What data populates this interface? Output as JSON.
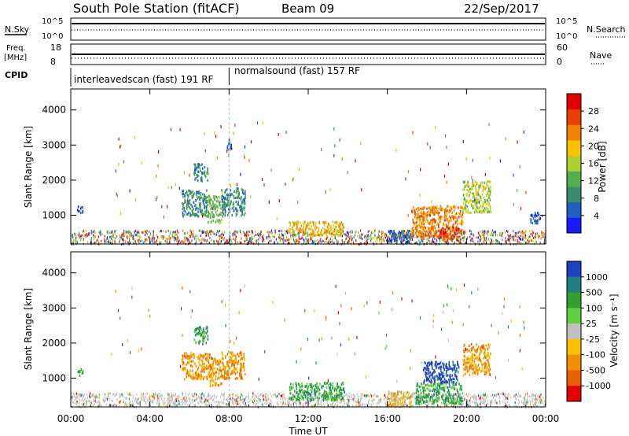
{
  "header": {
    "station": "South Pole Station (fitACF)",
    "beam": "Beam 09",
    "date": "22/Sep/2017"
  },
  "strip_labels": {
    "nsky": "N.Sky",
    "nsky_ticks": [
      "10^5",
      "10^0"
    ],
    "nsearch": "N.Search",
    "nsearch_ticks": [
      "10^5",
      "10^0"
    ],
    "freq_line1": "Freq.",
    "freq_line2": "[MHz]",
    "freq_ticks": [
      "18",
      "8"
    ],
    "nave": "Nave",
    "nave_ticks": [
      "60",
      "0"
    ],
    "cpid": "CPID"
  },
  "cpid_segments": [
    {
      "label": "interleavedscan (fast) 191 RF",
      "start_h": 0,
      "end_h": 8
    },
    {
      "label": "normalsound (fast) 157 RF",
      "start_h": 8,
      "end_h": 24
    }
  ],
  "colors": {
    "power": [
      "#1a1aff",
      "#2060c0",
      "#3a8c70",
      "#50b050",
      "#b0d030",
      "#f8c000",
      "#f08000",
      "#e84000",
      "#e00000"
    ],
    "velocity": [
      "#2040c0",
      "#208080",
      "#30a030",
      "#60d040",
      "#c0c0c0",
      "#f8c000",
      "#f09000",
      "#e86000",
      "#e00000"
    ]
  },
  "chart_data": [
    {
      "type": "heatmap",
      "name": "power",
      "xlabel": "",
      "ylabel": "Slant Range [km]",
      "x_ticks": [
        "00:00",
        "04:00",
        "08:00",
        "12:00",
        "16:00",
        "20:00",
        "00:00"
      ],
      "xlim_hours": [
        0,
        24
      ],
      "y_ticks": [
        1000,
        2000,
        3000,
        4000
      ],
      "ylim_km": [
        180,
        4600
      ],
      "colorbar_label": "Power [dB]",
      "colorbar_ticks": [
        4,
        8,
        12,
        16,
        20,
        24,
        28
      ],
      "colorbar_range": [
        0,
        32
      ],
      "scatter_regions": [
        {
          "t0": 5.6,
          "t1": 6.9,
          "r0": 1000,
          "r1": 1750,
          "level": 2
        },
        {
          "t0": 6.9,
          "t1": 7.6,
          "r0": 800,
          "r1": 1600,
          "level": 3
        },
        {
          "t0": 7.6,
          "t1": 8.8,
          "r0": 1000,
          "r1": 1800,
          "level": 2
        },
        {
          "t0": 6.2,
          "t1": 6.9,
          "r0": 2000,
          "r1": 2500,
          "level": 2
        },
        {
          "t0": 7.8,
          "t1": 8.1,
          "r0": 2900,
          "r1": 3200,
          "level": 1
        },
        {
          "t0": 11.0,
          "t1": 13.8,
          "r0": 450,
          "r1": 850,
          "level": 5
        },
        {
          "t0": 16.0,
          "t1": 17.2,
          "r0": 250,
          "r1": 600,
          "level": 1
        },
        {
          "t0": 17.2,
          "t1": 19.8,
          "r0": 400,
          "r1": 1300,
          "level": 6
        },
        {
          "t0": 18.6,
          "t1": 19.6,
          "r0": 300,
          "r1": 700,
          "level": 7
        },
        {
          "t0": 19.8,
          "t1": 21.2,
          "r0": 1100,
          "r1": 2000,
          "level": 4
        },
        {
          "t0": 0.3,
          "t1": 0.6,
          "r0": 1100,
          "r1": 1300,
          "level": 1
        },
        {
          "t0": 23.2,
          "t1": 23.8,
          "r0": 800,
          "r1": 1100,
          "level": 1
        }
      ],
      "ground_scatter_band_km": [
        200,
        600
      ]
    },
    {
      "type": "heatmap",
      "name": "velocity",
      "xlabel": "Time UT",
      "ylabel": "Slant Range [km]",
      "x_ticks": [
        "00:00",
        "04:00",
        "08:00",
        "12:00",
        "16:00",
        "20:00",
        "00:00"
      ],
      "xlim_hours": [
        0,
        24
      ],
      "y_ticks": [
        1000,
        2000,
        3000,
        4000
      ],
      "ylim_km": [
        180,
        4600
      ],
      "colorbar_label": "Velocity [m s⁻¹]",
      "colorbar_ticks": [
        "1000",
        "500",
        "100",
        "25",
        "-25",
        "-100",
        "-500",
        "-1000"
      ],
      "scatter_regions": [
        {
          "t0": 5.6,
          "t1": 7.0,
          "r0": 1000,
          "r1": 1750,
          "level": 6
        },
        {
          "t0": 7.0,
          "t1": 7.6,
          "r0": 800,
          "r1": 1600,
          "level": 6
        },
        {
          "t0": 7.6,
          "t1": 8.8,
          "r0": 1000,
          "r1": 1800,
          "level": 6
        },
        {
          "t0": 6.2,
          "t1": 6.9,
          "r0": 2000,
          "r1": 2500,
          "level": 2
        },
        {
          "t0": 11.0,
          "t1": 13.8,
          "r0": 400,
          "r1": 900,
          "level": 2
        },
        {
          "t0": 16.0,
          "t1": 17.2,
          "r0": 200,
          "r1": 650,
          "level": 5
        },
        {
          "t0": 17.4,
          "t1": 19.8,
          "r0": 300,
          "r1": 900,
          "level": 2
        },
        {
          "t0": 17.8,
          "t1": 19.6,
          "r0": 900,
          "r1": 1500,
          "level": 0
        },
        {
          "t0": 19.8,
          "t1": 21.2,
          "r0": 1100,
          "r1": 2000,
          "level": 6
        },
        {
          "t0": 0.3,
          "t1": 0.6,
          "r0": 1100,
          "r1": 1300,
          "level": 2
        }
      ],
      "ground_scatter_band_km": [
        200,
        600
      ]
    }
  ]
}
